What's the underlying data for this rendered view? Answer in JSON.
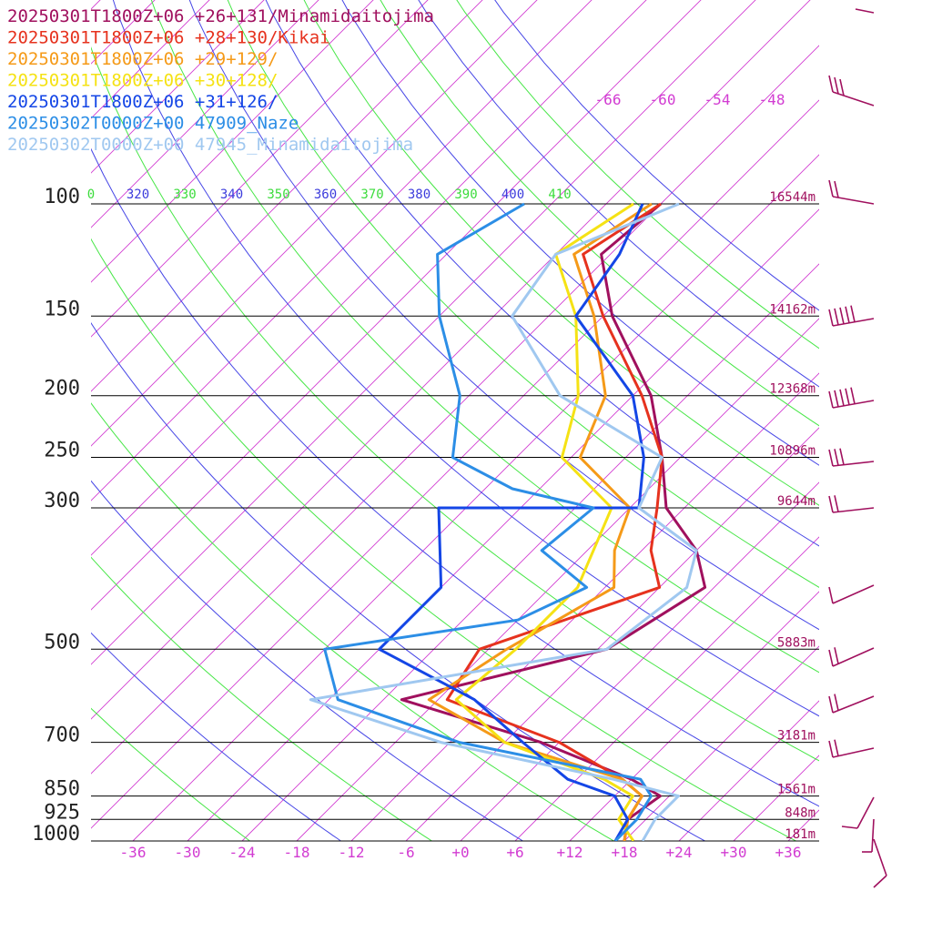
{
  "legend": [
    {
      "label": "20250301T1800Z+06 +26+131/Minamidaitojima",
      "color": "#a0105e"
    },
    {
      "label": "20250301T1800Z+06 +28+130/Kikai",
      "color": "#e6321e"
    },
    {
      "label": "20250301T1800Z+06 +29+129/",
      "color": "#f59a18"
    },
    {
      "label": "20250301T1800Z+06 +30+128/",
      "color": "#f5e214"
    },
    {
      "label": "20250301T1800Z+06 +31+126/",
      "color": "#1446e6"
    },
    {
      "label": "20250302T0000Z+00 47909_Naze",
      "color": "#2c8ee6"
    },
    {
      "label": "20250302T0000Z+00 47945_Minamidaitojima",
      "color": "#a0c8f0"
    }
  ],
  "chart_data": {
    "type": "line",
    "ylim": [
      1000,
      100
    ],
    "y_log": true,
    "skew": true,
    "xlim": [
      -40,
      40
    ],
    "pressure_levels": [
      {
        "p": 100,
        "label": "100",
        "height": "16544m"
      },
      {
        "p": 150,
        "label": "150",
        "height": "14162m"
      },
      {
        "p": 200,
        "label": "200",
        "height": "12368m"
      },
      {
        "p": 250,
        "label": "250",
        "height": "10896m"
      },
      {
        "p": 300,
        "label": "300",
        "height": "9644m"
      },
      {
        "p": 500,
        "label": "500",
        "height": "5883m"
      },
      {
        "p": 700,
        "label": "700",
        "height": "3181m"
      },
      {
        "p": 850,
        "label": "850",
        "height": "1561m"
      },
      {
        "p": 925,
        "label": "925",
        "height": "848m"
      },
      {
        "p": 1000,
        "label": "1000",
        "height": "181m"
      }
    ],
    "temp_ticks": [
      "-36",
      "-30",
      "-24",
      "-18",
      "-12",
      "-6",
      "+0",
      "+6",
      "+12",
      "+18",
      "+24",
      "+30",
      "+36"
    ],
    "upper_temp_labels": [
      "-66",
      "-60",
      "-54",
      "-48"
    ],
    "theta_labels": [
      {
        "label": "0",
        "color": "#3cdc3c"
      },
      {
        "label": "320",
        "color": "#3c3cdc"
      },
      {
        "label": "330",
        "color": "#3cdc3c"
      },
      {
        "label": "340",
        "color": "#3c3cdc"
      },
      {
        "label": "350",
        "color": "#3cdc3c"
      },
      {
        "label": "360",
        "color": "#3c3cdc"
      },
      {
        "label": "370",
        "color": "#3cdc3c"
      },
      {
        "label": "380",
        "color": "#3c3cdc"
      },
      {
        "label": "390",
        "color": "#3cdc3c"
      },
      {
        "label": "400",
        "color": "#3c3cdc"
      },
      {
        "label": "410",
        "color": "#3cdc3c"
      }
    ],
    "series": [
      {
        "name": "20250301T1800Z+06 +26+131/Minamidaitojima",
        "color": "#a0105e",
        "points": [
          [
            1000,
            18
          ],
          [
            925,
            16
          ],
          [
            850,
            17
          ],
          [
            800,
            12
          ],
          [
            700,
            -2
          ],
          [
            600,
            -22
          ],
          [
            500,
            -5
          ],
          [
            400,
            -1
          ],
          [
            350,
            -6
          ],
          [
            300,
            -14
          ],
          [
            250,
            -20
          ],
          [
            200,
            -28
          ],
          [
            150,
            -41
          ],
          [
            120,
            -49
          ],
          [
            100,
            -48
          ]
        ]
      },
      {
        "name": "20250301T1800Z+06 +28+130/Kikai",
        "color": "#e6321e",
        "points": [
          [
            1000,
            18
          ],
          [
            925,
            16
          ],
          [
            850,
            15
          ],
          [
            800,
            11
          ],
          [
            700,
            0
          ],
          [
            600,
            -17
          ],
          [
            500,
            -19
          ],
          [
            400,
            -6
          ],
          [
            350,
            -11
          ],
          [
            300,
            -15
          ],
          [
            250,
            -20
          ],
          [
            200,
            -29
          ],
          [
            150,
            -42
          ],
          [
            120,
            -51
          ],
          [
            100,
            -48
          ]
        ]
      },
      {
        "name": "20250301T1800Z+06 +29+129/",
        "color": "#f59a18",
        "points": [
          [
            1000,
            18
          ],
          [
            925,
            16
          ],
          [
            850,
            15
          ],
          [
            800,
            11
          ],
          [
            700,
            -6
          ],
          [
            600,
            -19
          ],
          [
            500,
            -16
          ],
          [
            400,
            -11
          ],
          [
            350,
            -15
          ],
          [
            300,
            -18
          ],
          [
            250,
            -29
          ],
          [
            200,
            -33
          ],
          [
            150,
            -43
          ],
          [
            120,
            -52
          ],
          [
            100,
            -49
          ]
        ]
      },
      {
        "name": "20250301T1800Z+06 +30+128/",
        "color": "#f5e214",
        "points": [
          [
            1000,
            19
          ],
          [
            925,
            15
          ],
          [
            850,
            14
          ],
          [
            800,
            9
          ],
          [
            700,
            -6
          ],
          [
            600,
            -16
          ],
          [
            500,
            -15
          ],
          [
            400,
            -15
          ],
          [
            300,
            -20
          ],
          [
            250,
            -31
          ],
          [
            200,
            -36
          ],
          [
            150,
            -45
          ],
          [
            120,
            -54
          ],
          [
            100,
            -51
          ]
        ]
      },
      {
        "name": "20250301T1800Z+06 +31+126/",
        "color": "#1446e6",
        "points": [
          [
            1000,
            17
          ],
          [
            925,
            16
          ],
          [
            850,
            12
          ],
          [
            800,
            5
          ],
          [
            700,
            -4
          ],
          [
            600,
            -14
          ],
          [
            500,
            -30
          ],
          [
            400,
            -30
          ],
          [
            300,
            -39
          ],
          [
            300,
            -17
          ],
          [
            250,
            -22
          ],
          [
            200,
            -30
          ],
          [
            150,
            -45
          ],
          [
            120,
            -47
          ],
          [
            100,
            -50
          ]
        ]
      },
      {
        "name": "20250302T0000Z+00 47909_Naze",
        "color": "#2c8ee6",
        "points": [
          [
            1000,
            17
          ],
          [
            925,
            17
          ],
          [
            850,
            16
          ],
          [
            800,
            13
          ],
          [
            700,
            -11
          ],
          [
            600,
            -29
          ],
          [
            500,
            -36
          ],
          [
            450,
            -18
          ],
          [
            400,
            -14
          ],
          [
            350,
            -23
          ],
          [
            300,
            -22
          ],
          [
            280,
            -33
          ],
          [
            250,
            -43
          ],
          [
            200,
            -49
          ],
          [
            150,
            -60
          ],
          [
            120,
            -67
          ],
          [
            100,
            -63
          ]
        ]
      },
      {
        "name": "20250302T0000Z+00 47945_Minamidaitojima",
        "color": "#a0c8f0",
        "points": [
          [
            1000,
            20
          ],
          [
            925,
            19
          ],
          [
            850,
            19
          ],
          [
            800,
            10
          ],
          [
            700,
            -13
          ],
          [
            600,
            -32
          ],
          [
            500,
            -5
          ],
          [
            400,
            -3
          ],
          [
            350,
            -6
          ],
          [
            300,
            -17
          ],
          [
            250,
            -20
          ],
          [
            200,
            -38
          ],
          [
            150,
            -52
          ],
          [
            120,
            -54
          ],
          [
            100,
            -46
          ]
        ]
      }
    ]
  }
}
